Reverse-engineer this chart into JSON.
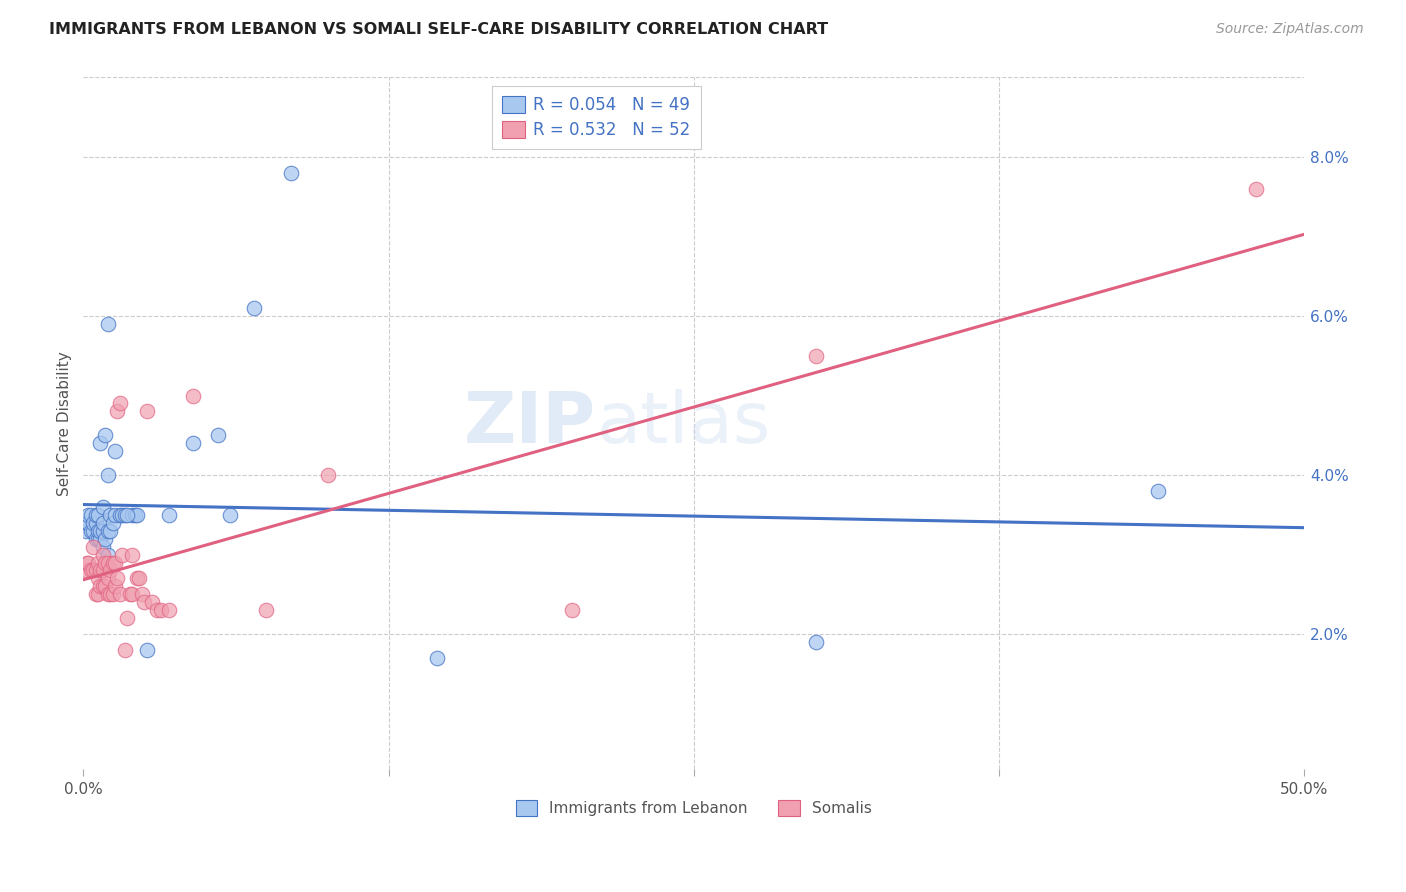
{
  "title": "IMMIGRANTS FROM LEBANON VS SOMALI SELF-CARE DISABILITY CORRELATION CHART",
  "source": "Source: ZipAtlas.com",
  "ylabel": "Self-Care Disability",
  "color_blue": "#A8C8F0",
  "color_pink": "#F0A0B0",
  "line_blue": "#4472C4",
  "line_pink": "#E06080",
  "watermark_zip": "ZIP",
  "watermark_atlas": "atlas",
  "xlim": [
    0.0,
    50.0
  ],
  "ylim": [
    0.3,
    9.0
  ],
  "blue_x": [
    0.1,
    0.15,
    0.2,
    0.2,
    0.3,
    0.3,
    0.4,
    0.4,
    0.5,
    0.5,
    0.5,
    0.6,
    0.6,
    0.6,
    0.7,
    0.7,
    0.7,
    0.8,
    0.8,
    0.8,
    0.8,
    0.9,
    0.9,
    1.0,
    1.0,
    1.0,
    1.1,
    1.1,
    1.2,
    1.3,
    1.3,
    1.5,
    1.6,
    1.7,
    2.0,
    2.1,
    2.2,
    2.6,
    3.5,
    4.5,
    5.5,
    6.0,
    7.0,
    8.5,
    14.5,
    30.0,
    44.0,
    1.0,
    1.8
  ],
  "blue_y": [
    3.3,
    3.4,
    3.4,
    3.5,
    3.3,
    3.5,
    3.3,
    3.4,
    3.2,
    3.4,
    3.5,
    3.2,
    3.3,
    3.5,
    3.2,
    3.3,
    4.4,
    3.1,
    3.3,
    3.4,
    3.6,
    4.5,
    3.2,
    3.0,
    3.3,
    4.0,
    3.3,
    3.5,
    3.4,
    3.5,
    4.3,
    3.5,
    3.5,
    3.5,
    3.5,
    3.5,
    3.5,
    1.8,
    3.5,
    4.4,
    4.5,
    3.5,
    6.1,
    7.8,
    1.7,
    1.9,
    3.8,
    5.9,
    3.5
  ],
  "pink_x": [
    0.1,
    0.15,
    0.2,
    0.3,
    0.4,
    0.4,
    0.5,
    0.5,
    0.6,
    0.6,
    0.6,
    0.7,
    0.7,
    0.8,
    0.8,
    0.8,
    0.9,
    0.9,
    1.0,
    1.0,
    1.0,
    1.1,
    1.1,
    1.2,
    1.2,
    1.3,
    1.3,
    1.4,
    1.4,
    1.5,
    1.5,
    1.6,
    1.7,
    1.8,
    1.9,
    2.0,
    2.0,
    2.2,
    2.3,
    2.4,
    2.5,
    2.6,
    2.8,
    3.0,
    3.2,
    3.5,
    4.5,
    7.5,
    10.0,
    20.0,
    30.0,
    48.0
  ],
  "pink_y": [
    2.8,
    2.9,
    2.9,
    2.8,
    2.8,
    3.1,
    2.5,
    2.8,
    2.5,
    2.7,
    2.9,
    2.6,
    2.8,
    2.6,
    2.8,
    3.0,
    2.6,
    2.9,
    2.5,
    2.7,
    2.9,
    2.5,
    2.8,
    2.5,
    2.9,
    2.6,
    2.9,
    2.7,
    4.8,
    2.5,
    4.9,
    3.0,
    1.8,
    2.2,
    2.5,
    2.5,
    3.0,
    2.7,
    2.7,
    2.5,
    2.4,
    4.8,
    2.4,
    2.3,
    2.3,
    2.3,
    5.0,
    2.3,
    4.0,
    2.3,
    5.5,
    7.6
  ]
}
